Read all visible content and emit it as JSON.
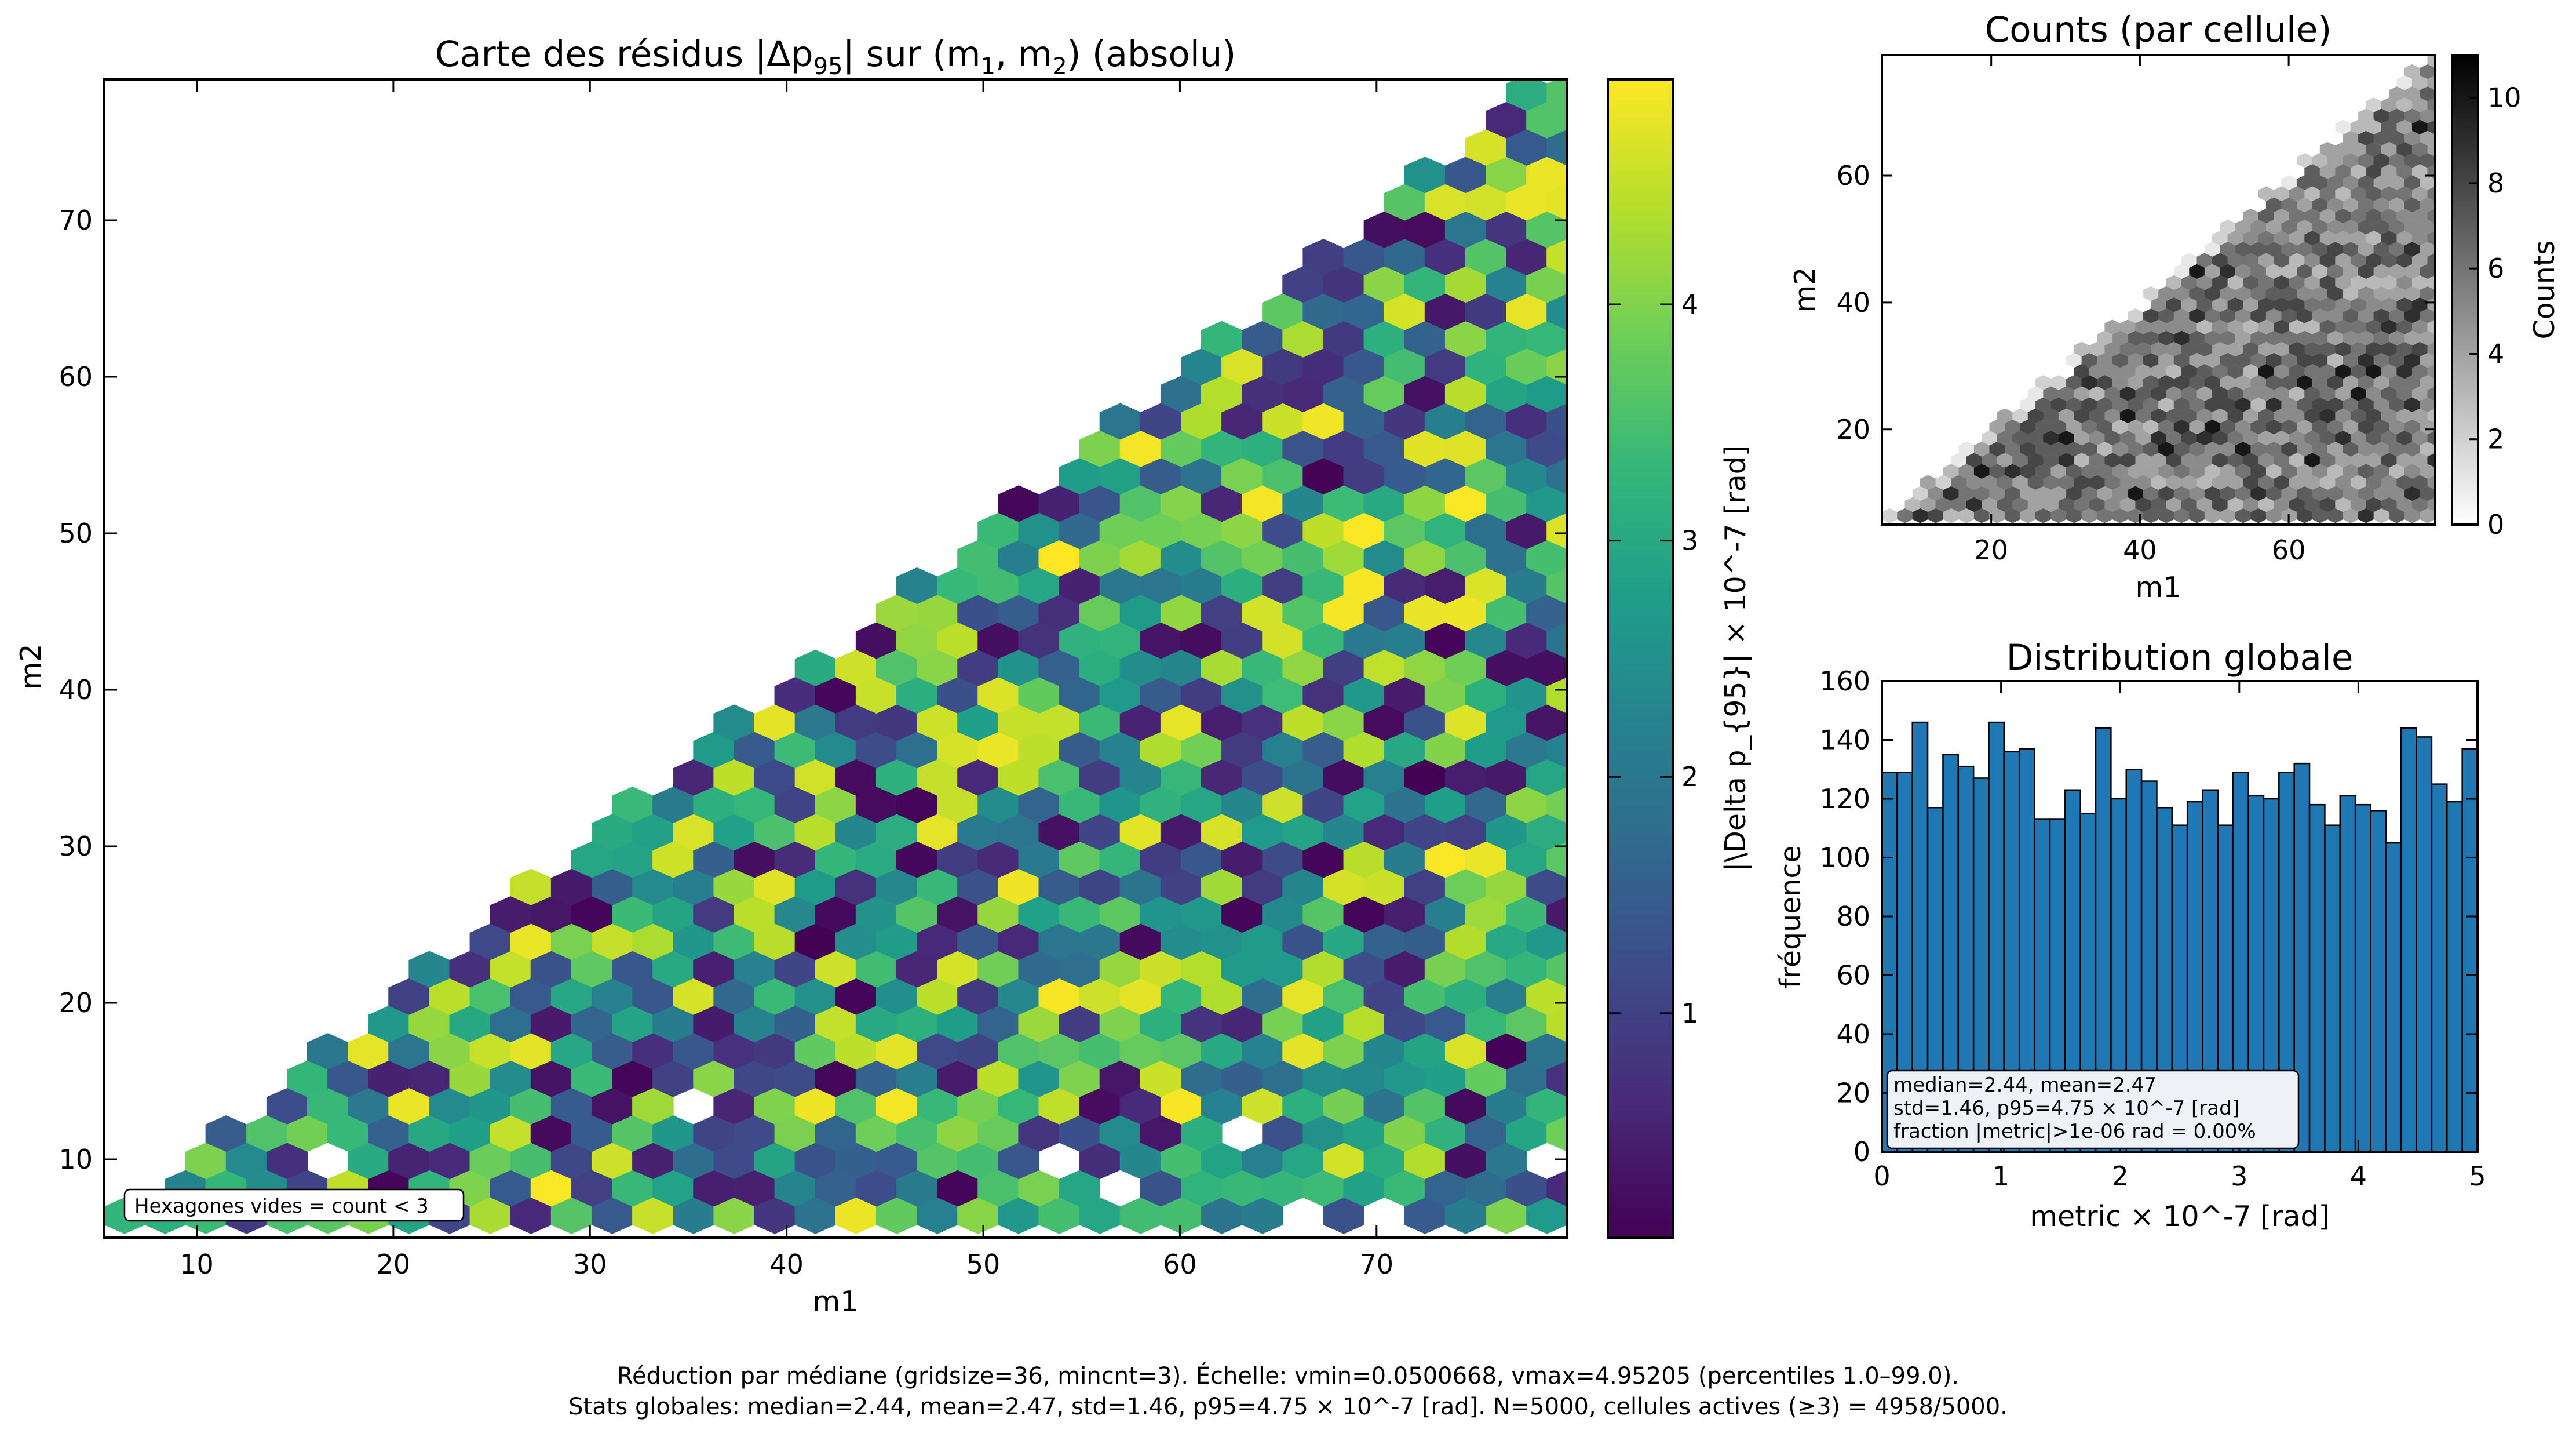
{
  "colors": {
    "viridis": [
      "#440154",
      "#482878",
      "#3e4989",
      "#31688e",
      "#26828e",
      "#1f9e89",
      "#35b779",
      "#6ece58",
      "#b5de2b",
      "#fde725"
    ],
    "hist_bar": "#1f77b4",
    "background": "#ffffff"
  },
  "chart_data": [
    {
      "type": "heatmap",
      "subtype": "hexbin",
      "title": "Carte des résidus |Δp95| sur (m1, m2) (absolu)",
      "title_parts": {
        "pre": "Carte des résidus |Δp",
        "sub": "95",
        "mid": "| sur (m",
        "sub1": "1",
        "comma": ", m",
        "sub2": "2",
        "post": ") (absolu)"
      },
      "xlabel": "m1",
      "ylabel": "m2",
      "xlim": [
        5.3,
        79.7
      ],
      "ylim": [
        5,
        79
      ],
      "xticks": [
        10,
        20,
        30,
        40,
        50,
        60,
        70
      ],
      "yticks": [
        10,
        20,
        30,
        40,
        50,
        60,
        70
      ],
      "gridsize": 36,
      "mincnt": 3,
      "domain": "m2 <= m1",
      "colorbar": {
        "label": "|\\Delta p_{95}| × 10^-7 [rad]",
        "vmin": 0.0500668,
        "vmax": 4.95205,
        "ticks": [
          1,
          2,
          3,
          4
        ]
      },
      "note": "Hexagones vides = count < 3",
      "cell_values_summary": "per-cell median, values spread uniformly between 0.05 and 4.95"
    },
    {
      "type": "heatmap",
      "subtype": "hexbin",
      "title": "Counts (par cellule)",
      "xlabel": "m1",
      "ylabel": "m2",
      "xlim": [
        5.3,
        79.7
      ],
      "ylim": [
        5,
        79
      ],
      "xticks": [
        20,
        40,
        60
      ],
      "yticks": [
        20,
        40,
        60
      ],
      "colorbar": {
        "label": "Counts",
        "vmin": 0,
        "vmax": 11,
        "ticks": [
          0,
          2,
          4,
          6,
          8,
          10
        ]
      }
    },
    {
      "type": "bar",
      "subtype": "histogram",
      "title": "Distribution globale",
      "xlabel": "metric × 10^-7 [rad]",
      "ylabel": "fréquence",
      "xlim": [
        0,
        5
      ],
      "ylim": [
        0,
        160
      ],
      "xticks": [
        0,
        1,
        2,
        3,
        4,
        5
      ],
      "yticks": [
        0,
        20,
        40,
        60,
        80,
        100,
        120,
        140,
        160
      ],
      "bin_edges_start": 0,
      "bin_width": 0.1,
      "values": [
        129,
        129,
        146,
        117,
        135,
        131,
        127,
        146,
        136,
        137,
        113,
        113,
        123,
        115,
        144,
        120,
        130,
        126,
        117,
        111,
        119,
        123,
        111,
        129,
        121,
        120,
        129,
        132,
        118,
        111,
        121,
        118,
        116,
        105,
        144,
        141,
        125,
        119,
        137
      ],
      "stats_box": [
        "median=2.44, mean=2.47",
        "std=1.46, p95=4.75 × 10^-7 [rad]",
        "fraction |metric|>1e-06 rad = 0.00%"
      ]
    }
  ],
  "footer": [
    "Réduction par médiane (gridsize=36, mincnt=3). Échelle: vmin=0.0500668, vmax=4.95205  (percentiles 1.0–99.0).",
    "Stats globales: median=2.44, mean=2.47, std=1.46, p95=4.75 × 10^-7 [rad]. N=5000, cellules actives (≥3) = 4958/5000."
  ]
}
